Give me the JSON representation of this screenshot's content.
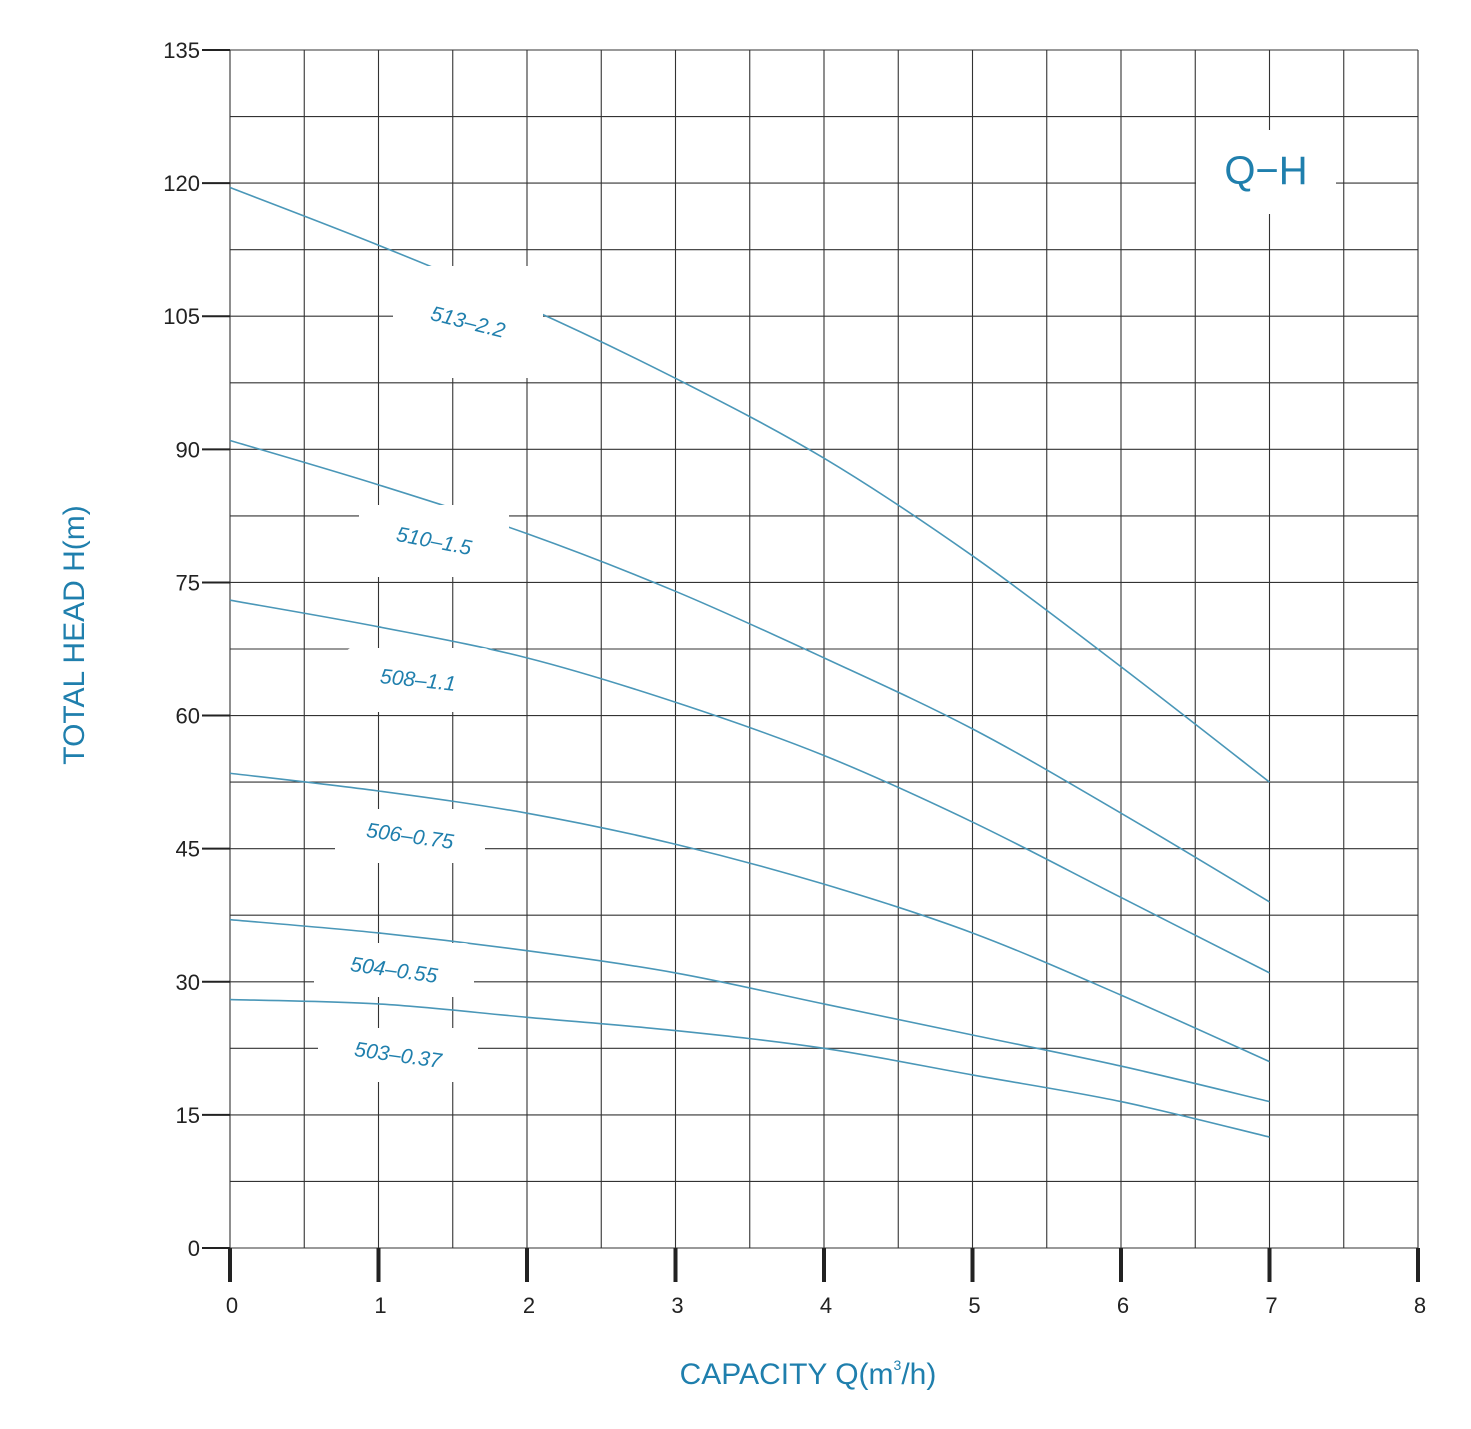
{
  "chart_data": {
    "type": "line",
    "title": "Q−H",
    "xlabel": "CAPACITY Q(m³/h)",
    "xlabel_main": "CAPACITY Q(m",
    "xlabel_sup": "3",
    "xlabel_end": "/h)",
    "ylabel": "TOTAL HEAD H(m)",
    "xlim": [
      0,
      8
    ],
    "ylim": [
      0,
      135
    ],
    "x_ticks": [
      "0",
      "1",
      "2",
      "3",
      "4",
      "5",
      "6",
      "7",
      "8"
    ],
    "y_ticks": [
      "0",
      "15",
      "30",
      "45",
      "60",
      "75",
      "90",
      "105",
      "120",
      "135"
    ],
    "grid": true,
    "colors": {
      "accent": "#1f7fad",
      "curve": "#4a97b8",
      "grid": "#333333",
      "text": "#222222"
    },
    "series": [
      {
        "name": "513-2.2",
        "label": "513–2.2",
        "x": [
          0,
          1,
          2,
          3,
          4,
          5,
          6,
          7
        ],
        "y": [
          119.5,
          113.0,
          106.0,
          98.0,
          89.0,
          78.0,
          65.5,
          52.5
        ]
      },
      {
        "name": "510-1.5",
        "label": "510–1.5",
        "x": [
          0,
          1,
          2,
          3,
          4,
          5,
          6,
          7
        ],
        "y": [
          91.0,
          86.0,
          80.5,
          74.0,
          66.5,
          58.5,
          49.0,
          39.0
        ]
      },
      {
        "name": "508-1.1",
        "label": "508–1.1",
        "x": [
          0,
          1,
          2,
          3,
          4,
          5,
          6,
          7
        ],
        "y": [
          73.0,
          70.0,
          66.5,
          61.5,
          55.5,
          48.0,
          39.5,
          31.0
        ]
      },
      {
        "name": "506-0.75",
        "label": "506–0.75",
        "x": [
          0,
          1,
          2,
          3,
          4,
          5,
          6,
          7
        ],
        "y": [
          53.5,
          51.5,
          49.0,
          45.5,
          41.0,
          35.5,
          28.5,
          21.0
        ]
      },
      {
        "name": "504-0.55",
        "label": "504–0.55",
        "x": [
          0,
          1,
          2,
          3,
          4,
          5,
          6,
          7
        ],
        "y": [
          37.0,
          35.5,
          33.5,
          31.0,
          27.5,
          24.0,
          20.5,
          16.5
        ]
      },
      {
        "name": "503-0.37",
        "label": "503–0.37",
        "x": [
          0,
          1,
          2,
          3,
          4,
          5,
          6,
          7
        ],
        "y": [
          28.0,
          27.5,
          26.0,
          24.5,
          22.5,
          19.5,
          16.5,
          12.5
        ]
      }
    ]
  }
}
